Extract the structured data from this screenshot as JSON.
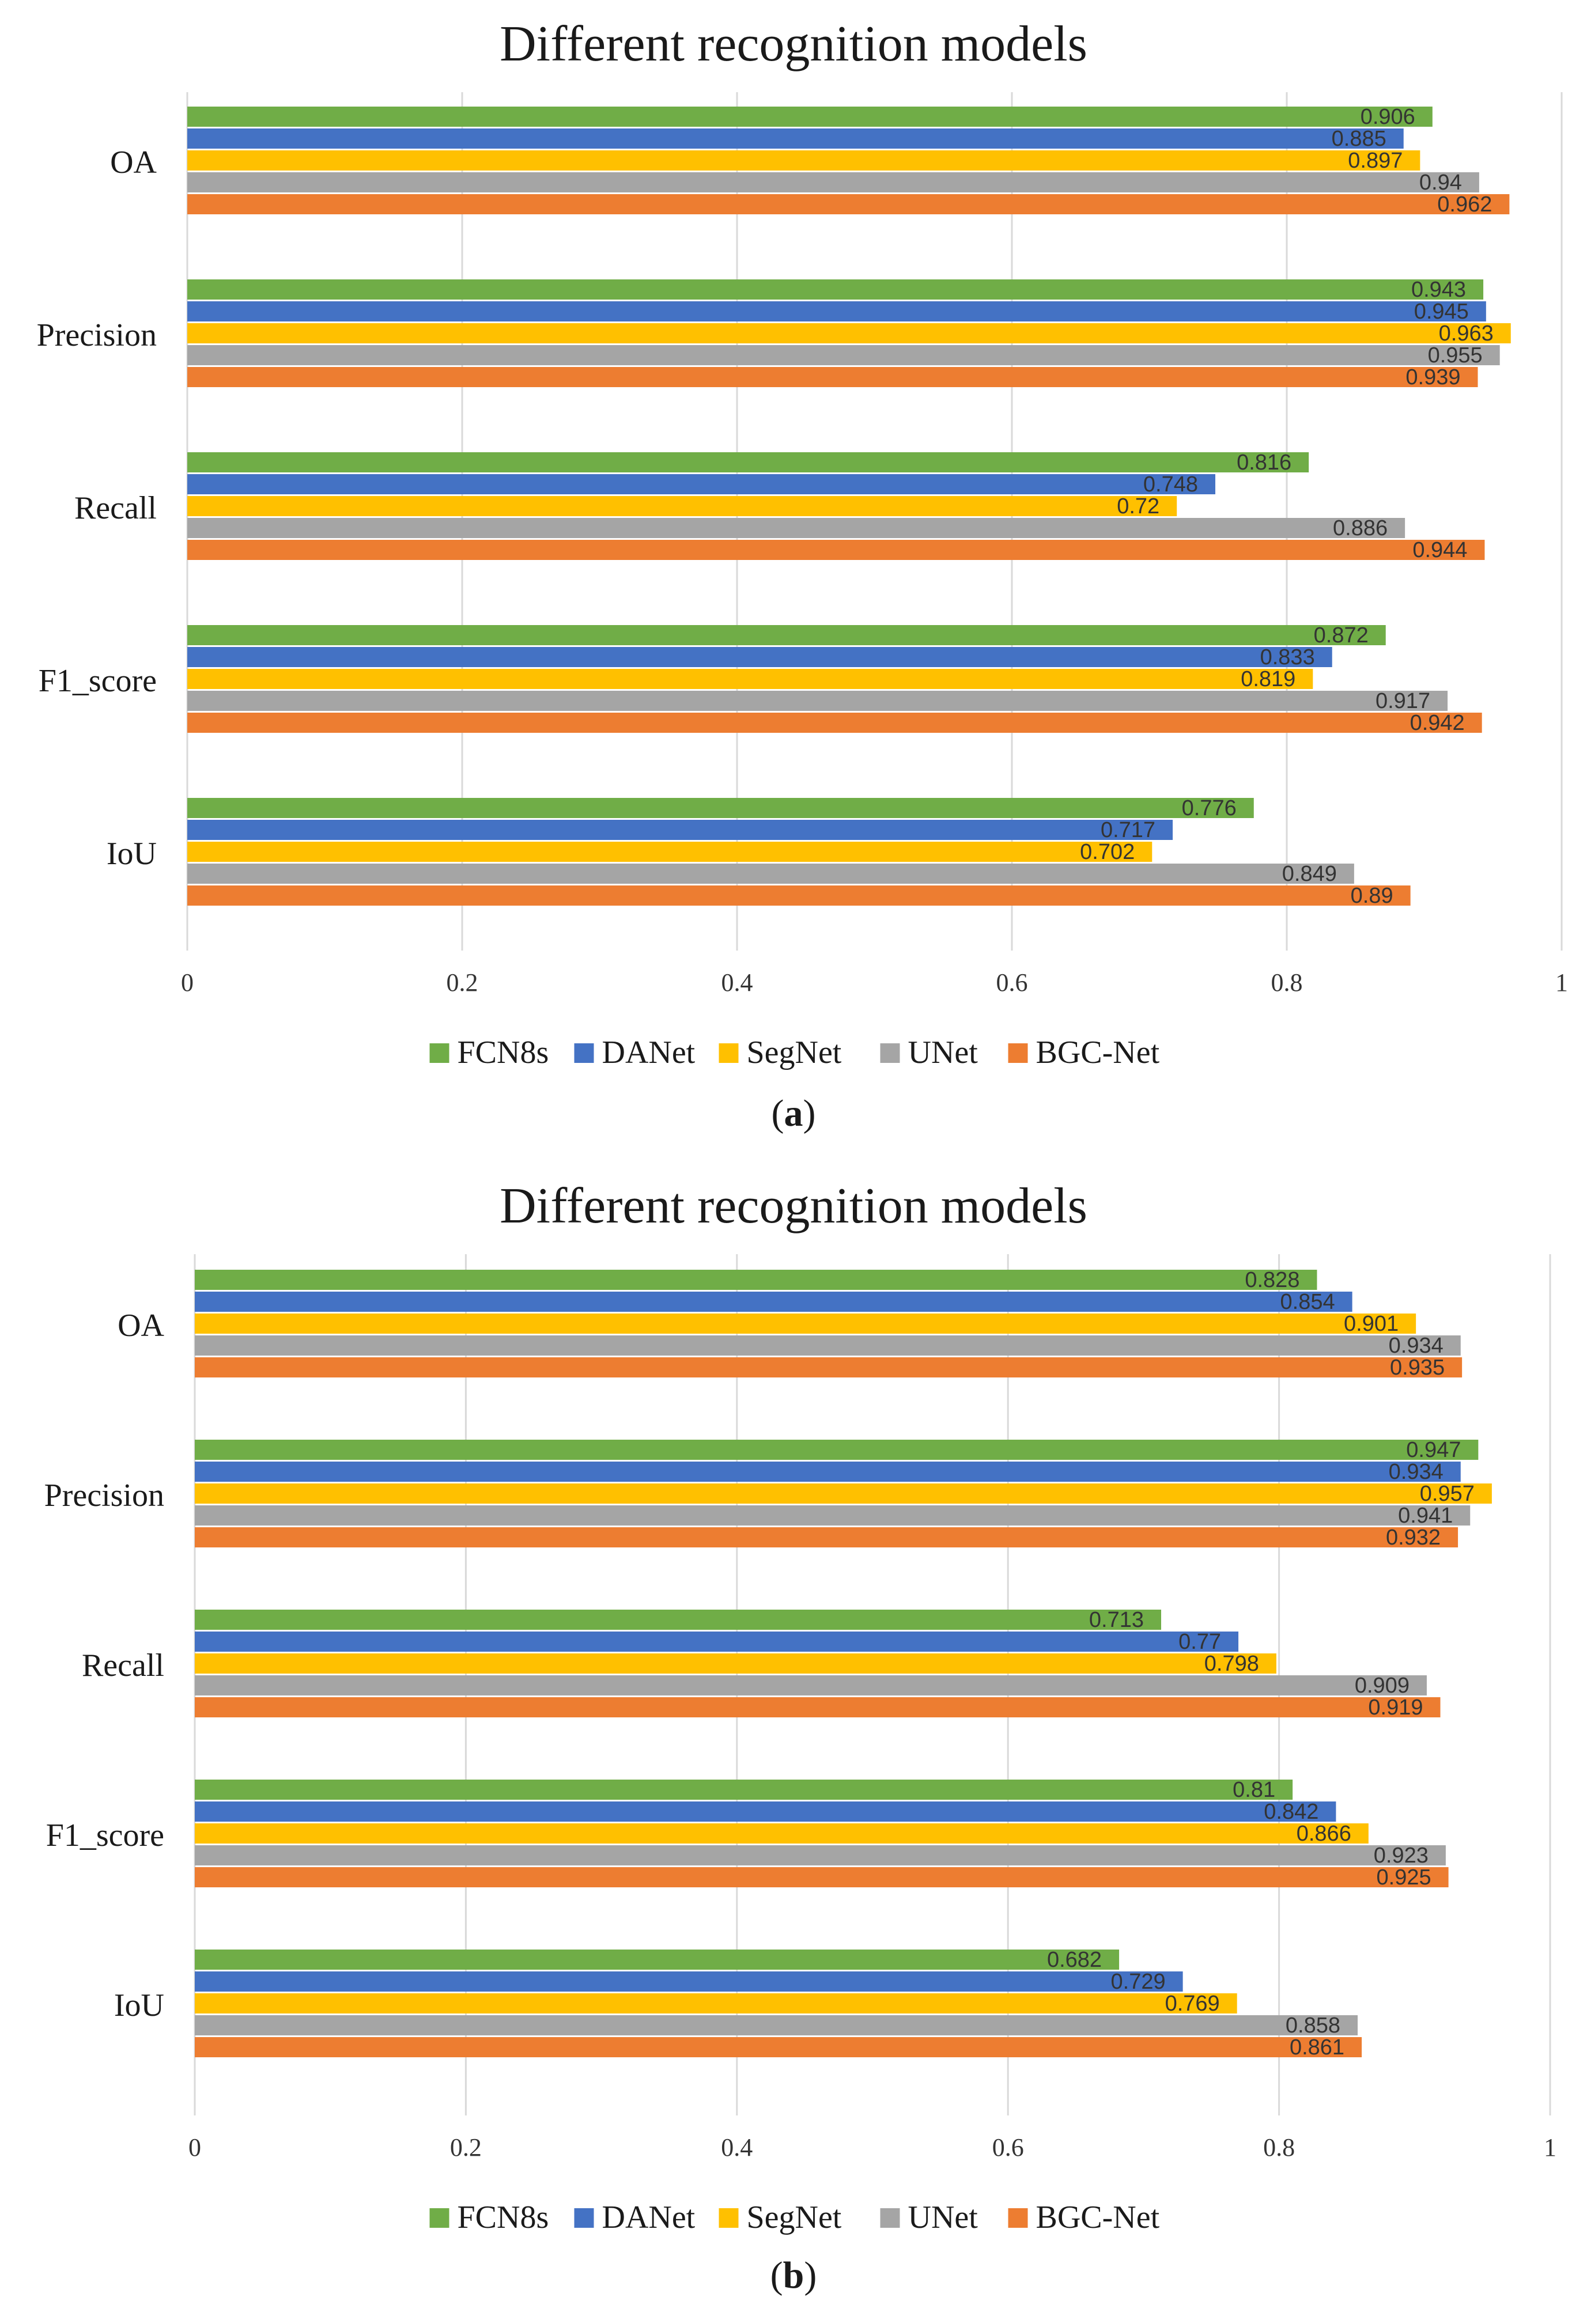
{
  "chart_data": [
    {
      "type": "bar",
      "orientation": "horizontal",
      "title": "Different recognition models",
      "caption": "a",
      "categories": [
        "OA",
        "Precision",
        "Recall",
        "F1_score",
        "IoU"
      ],
      "series": [
        {
          "name": "FCN8s",
          "color": "#70ad47",
          "values": [
            0.906,
            0.943,
            0.816,
            0.872,
            0.776
          ],
          "labels": [
            "0.906",
            "0.943",
            "0.816",
            "0.872",
            "0.776"
          ]
        },
        {
          "name": "DANet",
          "color": "#4472c4",
          "values": [
            0.885,
            0.945,
            0.748,
            0.833,
            0.717
          ],
          "labels": [
            "0.885",
            "0.945",
            "0.748",
            "0.833",
            "0.717"
          ]
        },
        {
          "name": "SegNet",
          "color": "#ffc000",
          "values": [
            0.897,
            0.963,
            0.72,
            0.819,
            0.702
          ],
          "labels": [
            "0.897",
            "0.963",
            "0.72",
            "0.819",
            "0.702"
          ]
        },
        {
          "name": "UNet",
          "color": "#a5a5a5",
          "values": [
            0.94,
            0.955,
            0.886,
            0.917,
            0.849
          ],
          "labels": [
            "0.94",
            "0.955",
            "0.886",
            "0.917",
            "0.849"
          ]
        },
        {
          "name": "BGC-Net",
          "color": "#ed7d31",
          "values": [
            0.962,
            0.939,
            0.944,
            0.942,
            0.89
          ],
          "labels": [
            "0.962",
            "0.939",
            "0.944",
            "0.942",
            "0.89"
          ]
        }
      ],
      "xlim": [
        0,
        1
      ],
      "xticks": [
        0,
        0.2,
        0.4,
        0.6,
        0.8,
        1
      ],
      "xtick_labels": [
        "0",
        "0.2",
        "0.4",
        "0.6",
        "0.8",
        "1"
      ],
      "grid": true,
      "legend_position": "bottom"
    },
    {
      "type": "bar",
      "orientation": "horizontal",
      "title": "Different recognition models",
      "caption": "b",
      "categories": [
        "OA",
        "Precision",
        "Recall",
        "F1_score",
        "IoU"
      ],
      "series": [
        {
          "name": "FCN8s",
          "color": "#70ad47",
          "values": [
            0.828,
            0.947,
            0.713,
            0.81,
            0.682
          ],
          "labels": [
            "0.828",
            "0.947",
            "0.713",
            "0.81",
            "0.682"
          ]
        },
        {
          "name": "DANet",
          "color": "#4472c4",
          "values": [
            0.854,
            0.934,
            0.77,
            0.842,
            0.729
          ],
          "labels": [
            "0.854",
            "0.934",
            "0.77",
            "0.842",
            "0.729"
          ]
        },
        {
          "name": "SegNet",
          "color": "#ffc000",
          "values": [
            0.901,
            0.957,
            0.798,
            0.866,
            0.769
          ],
          "labels": [
            "0.901",
            "0.957",
            "0.798",
            "0.866",
            "0.769"
          ]
        },
        {
          "name": "UNet",
          "color": "#a5a5a5",
          "values": [
            0.934,
            0.941,
            0.909,
            0.923,
            0.858
          ],
          "labels": [
            "0.934",
            "0.941",
            "0.909",
            "0.923",
            "0.858"
          ]
        },
        {
          "name": "BGC-Net",
          "color": "#ed7d31",
          "values": [
            0.935,
            0.932,
            0.919,
            0.925,
            0.861
          ],
          "labels": [
            "0.935",
            "0.932",
            "0.919",
            "0.925",
            "0.861"
          ]
        }
      ],
      "xlim": [
        0,
        1
      ],
      "xticks": [
        0,
        0.2,
        0.4,
        0.6,
        0.8,
        1
      ],
      "xtick_labels": [
        "0",
        "0.2",
        "0.4",
        "0.6",
        "0.8",
        "1"
      ],
      "grid": true,
      "legend_position": "bottom"
    }
  ]
}
